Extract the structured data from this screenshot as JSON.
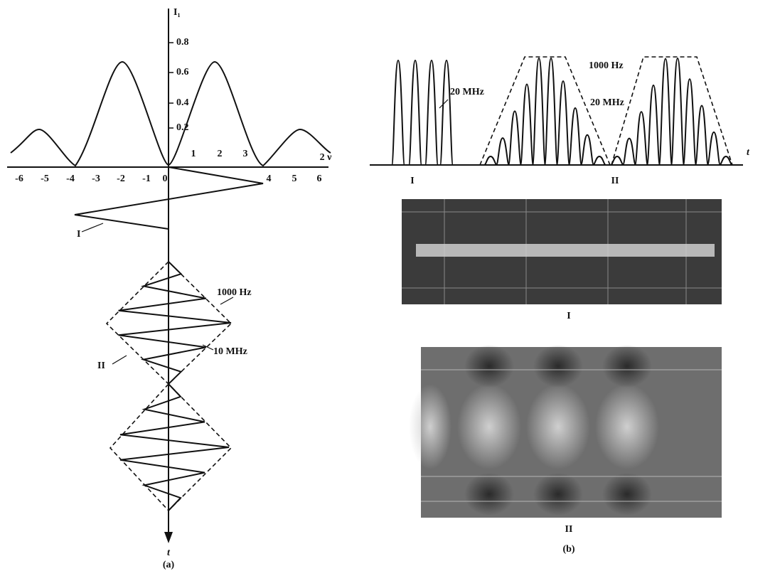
{
  "figure_a": {
    "y_axis_label": "I₁",
    "y_ticks": [
      "0.8",
      "0.6",
      "0.4",
      "0.2"
    ],
    "x_ticks_upper": [
      "1",
      "2",
      "3"
    ],
    "x_axis_label": "2 ν",
    "x_ticks_lower": [
      "-6",
      "-5",
      "-4",
      "-3",
      "-2",
      "-1",
      "0",
      "4",
      "5",
      "6"
    ],
    "curve_label_1": "I",
    "envelope_label": "1000 Hz",
    "carrier_label": "10 MHz",
    "curve_label_2": "II",
    "time_label": "t",
    "caption": "(a)"
  },
  "figure_b": {
    "carrier_label_1": "20 MHz",
    "envelope_label": "1000 Hz",
    "carrier_label_2": "20 MHz",
    "time_label": "t",
    "group_label_1": "I",
    "group_label_2": "II",
    "photo_label_1": "I",
    "photo_label_2": "II",
    "caption": "(b)"
  }
}
